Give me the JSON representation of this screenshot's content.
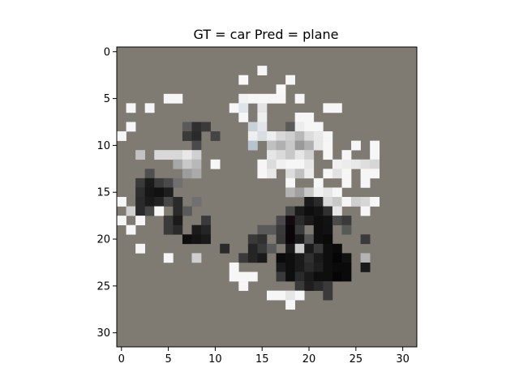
{
  "chart_data": {
    "type": "heatmap",
    "title": "GT = car Pred = plane",
    "xlabel": "",
    "ylabel": "",
    "grid": false,
    "xlim": [
      -0.5,
      31.5
    ],
    "ylim": [
      31.5,
      -0.5
    ],
    "x_ticks": [
      0,
      5,
      10,
      15,
      20,
      25,
      30
    ],
    "y_ticks": [
      0,
      5,
      10,
      15,
      20,
      25,
      30
    ],
    "background_color": "#7f7b72",
    "cells": [
      [
        15,
        2,
        "#f6f6f6"
      ],
      [
        13,
        3,
        "#f8f8f8"
      ],
      [
        18,
        3,
        "#f6f6f6"
      ],
      [
        17,
        4,
        "#f8f8f8"
      ],
      [
        5,
        5,
        "#f6f6f6"
      ],
      [
        6,
        5,
        "#f6f6f6"
      ],
      [
        13,
        5,
        "#f2f2f2"
      ],
      [
        14,
        5,
        "#f6f6f6"
      ],
      [
        15,
        5,
        "#f6f6f6"
      ],
      [
        16,
        5,
        "#f6f6f6"
      ],
      [
        17,
        5,
        "#f6f6f6"
      ],
      [
        19,
        5,
        "#f6f6f6"
      ],
      [
        1,
        6,
        "#f6f6f6"
      ],
      [
        3,
        6,
        "#f6f6f6"
      ],
      [
        12,
        6,
        "#f6f6f6"
      ],
      [
        13,
        6,
        "#dde4ea"
      ],
      [
        15,
        6,
        "#e4e4e4"
      ],
      [
        22,
        6,
        "#f6f6f6"
      ],
      [
        23,
        6,
        "#f6f6f6"
      ],
      [
        13,
        7,
        "#f6f6f6"
      ],
      [
        15,
        7,
        "#eeeeee"
      ],
      [
        19,
        7,
        "#f6f6f6"
      ],
      [
        20,
        7,
        "#f6f6f6"
      ],
      [
        1,
        8,
        "#f6f6f6"
      ],
      [
        7,
        8,
        "#5a5a5a"
      ],
      [
        8,
        8,
        "#2f2f2f"
      ],
      [
        9,
        8,
        "#3a3a3a"
      ],
      [
        14,
        8,
        "#c8d0d8"
      ],
      [
        15,
        8,
        "#e2e6ea"
      ],
      [
        18,
        8,
        "#5a5a5a"
      ],
      [
        19,
        8,
        "#ececec"
      ],
      [
        20,
        8,
        "#f6f6f6"
      ],
      [
        21,
        8,
        "#f6f6f6"
      ],
      [
        0,
        9,
        "#f6f6f6"
      ],
      [
        7,
        9,
        "#3a3a3a"
      ],
      [
        8,
        9,
        "#2a2a2a"
      ],
      [
        10,
        9,
        "#454545"
      ],
      [
        14,
        9,
        "#eeeeee"
      ],
      [
        15,
        9,
        "#d8dde2"
      ],
      [
        16,
        9,
        "#eeeeee"
      ],
      [
        17,
        9,
        "#d8d8d8"
      ],
      [
        18,
        9,
        "#cfcfcf"
      ],
      [
        19,
        9,
        "#b8b8b8"
      ],
      [
        20,
        9,
        "#dcdcdc"
      ],
      [
        21,
        9,
        "#e8e8e8"
      ],
      [
        22,
        9,
        "#f6f6f6"
      ],
      [
        8,
        10,
        "#4a4a4a"
      ],
      [
        14,
        10,
        "#b7c4d0"
      ],
      [
        16,
        10,
        "#c0c0c0"
      ],
      [
        17,
        10,
        "#b0b0b0"
      ],
      [
        18,
        10,
        "#c8c8c8"
      ],
      [
        19,
        10,
        "#9a9a9a"
      ],
      [
        20,
        10,
        "#b0b0b0"
      ],
      [
        21,
        10,
        "#e6e6e6"
      ],
      [
        22,
        10,
        "#f6f6f6"
      ],
      [
        25,
        10,
        "#f6f6f6"
      ],
      [
        27,
        10,
        "#f6f6f6"
      ],
      [
        2,
        11,
        "#c2c2c2"
      ],
      [
        4,
        11,
        "#d8d8d8"
      ],
      [
        5,
        11,
        "#d8d8d8"
      ],
      [
        6,
        11,
        "#d8d8d8"
      ],
      [
        7,
        11,
        "#e8e8e8"
      ],
      [
        8,
        11,
        "#d0d0d0"
      ],
      [
        16,
        11,
        "#e6e6e6"
      ],
      [
        17,
        11,
        "#dadada"
      ],
      [
        18,
        11,
        "#c8c8c8"
      ],
      [
        19,
        11,
        "#e6e6e6"
      ],
      [
        20,
        11,
        "#d0d0d0"
      ],
      [
        22,
        11,
        "#f6f6f6"
      ],
      [
        24,
        11,
        "#f6f6f6"
      ],
      [
        27,
        11,
        "#f6f6f6"
      ],
      [
        6,
        12,
        "#a8a8a8"
      ],
      [
        7,
        12,
        "#c8c8c8"
      ],
      [
        8,
        12,
        "#b8b8b8"
      ],
      [
        10,
        12,
        "#f6f6f6"
      ],
      [
        15,
        12,
        "#f6f6f6"
      ],
      [
        16,
        12,
        "#dcdcdc"
      ],
      [
        17,
        12,
        "#f0f0f0"
      ],
      [
        18,
        12,
        "#f6f6f6"
      ],
      [
        19,
        12,
        "#f6f6f6"
      ],
      [
        20,
        12,
        "#e6e6e6"
      ],
      [
        23,
        12,
        "#f0f0f0"
      ],
      [
        24,
        12,
        "#ececec"
      ],
      [
        25,
        12,
        "#e8e8e8"
      ],
      [
        26,
        12,
        "#dedede"
      ],
      [
        27,
        12,
        "#d6d6d6"
      ],
      [
        3,
        13,
        "#4f4f4f"
      ],
      [
        7,
        13,
        "#9c9c9c"
      ],
      [
        8,
        13,
        "#aaaaaa"
      ],
      [
        15,
        13,
        "#f6f6f6"
      ],
      [
        16,
        13,
        "#e8e8e8"
      ],
      [
        18,
        13,
        "#dcdcdc"
      ],
      [
        19,
        13,
        "#c0c0c0"
      ],
      [
        20,
        13,
        "#ececec"
      ],
      [
        22,
        13,
        "#f6f6f6"
      ],
      [
        23,
        13,
        "#e2e2e2"
      ],
      [
        24,
        13,
        "#f6f6f6"
      ],
      [
        26,
        13,
        "#f6f6f6"
      ],
      [
        27,
        13,
        "#f6f6f6"
      ],
      [
        2,
        14,
        "#3a3a3a"
      ],
      [
        3,
        14,
        "#1a1a1a"
      ],
      [
        4,
        14,
        "#3a3a3a"
      ],
      [
        5,
        14,
        "#4a4a4a"
      ],
      [
        6,
        14,
        "#707070"
      ],
      [
        18,
        14,
        "#f6f6f6"
      ],
      [
        21,
        14,
        "#f6f6f6"
      ],
      [
        24,
        14,
        "#f6f6f6"
      ],
      [
        26,
        14,
        "#f6f6f6"
      ],
      [
        2,
        15,
        "#2e2e2e"
      ],
      [
        3,
        15,
        "#161616"
      ],
      [
        4,
        15,
        "#111111"
      ],
      [
        5,
        15,
        "#1e1e1e"
      ],
      [
        18,
        15,
        "#b4b4b4"
      ],
      [
        19,
        15,
        "#a0a0a0"
      ],
      [
        20,
        15,
        "#c8c8c8"
      ],
      [
        21,
        15,
        "#f0f0f0"
      ],
      [
        22,
        15,
        "#e6e6e6"
      ],
      [
        23,
        15,
        "#f6f6f6"
      ],
      [
        2,
        16,
        "#2a2a2a"
      ],
      [
        3,
        16,
        "#1a1a1a"
      ],
      [
        4,
        16,
        "#232323"
      ],
      [
        5,
        16,
        "#474747"
      ],
      [
        6,
        16,
        "#2a2a2a"
      ],
      [
        8,
        16,
        "#707070"
      ],
      [
        20,
        16,
        "#1a1a1a"
      ],
      [
        21,
        16,
        "#2a2a2a"
      ],
      [
        22,
        16,
        "#d8d8d8"
      ],
      [
        23,
        16,
        "#c8c8c8"
      ],
      [
        24,
        16,
        "#f6f6f6"
      ],
      [
        25,
        16,
        "#cfcfcf"
      ],
      [
        26,
        16,
        "#d6d6d6"
      ],
      [
        27,
        16,
        "#f6f6f6"
      ],
      [
        0,
        16,
        "#f6f6f6"
      ],
      [
        1,
        17,
        "#d0d0d0"
      ],
      [
        2,
        17,
        "#2a2a2a"
      ],
      [
        3,
        17,
        "#474747"
      ],
      [
        4,
        17,
        "#f6f6f6"
      ],
      [
        6,
        17,
        "#2a2a2a"
      ],
      [
        7,
        17,
        "#5a5a5a"
      ],
      [
        18,
        17,
        "#4a4a4a"
      ],
      [
        19,
        17,
        "#1a1a1a"
      ],
      [
        20,
        17,
        "#0e0e0e"
      ],
      [
        21,
        17,
        "#141414"
      ],
      [
        22,
        17,
        "#303030"
      ],
      [
        23,
        17,
        "#e6e6e6"
      ],
      [
        26,
        17,
        "#f6f6f6"
      ],
      [
        0,
        18,
        "#f6f6f6"
      ],
      [
        2,
        18,
        "#f6f6f6"
      ],
      [
        5,
        18,
        "#3a3a3a"
      ],
      [
        6,
        18,
        "#1a1a1a"
      ],
      [
        9,
        18,
        "#3a3a3a"
      ],
      [
        17,
        18,
        "#4a4a4a"
      ],
      [
        18,
        18,
        "#120a0e"
      ],
      [
        19,
        18,
        "#2a2a2a"
      ],
      [
        20,
        18,
        "#1a1a1a"
      ],
      [
        21,
        18,
        "#0e0e0e"
      ],
      [
        22,
        18,
        "#121212"
      ],
      [
        23,
        18,
        "#4a4a4a"
      ],
      [
        24,
        18,
        "#3a3a3a"
      ],
      [
        1,
        19,
        "#f6f6f6"
      ],
      [
        5,
        19,
        "#3a3a3a"
      ],
      [
        6,
        19,
        "#2a2a2a"
      ],
      [
        8,
        19,
        "#1a1a1a"
      ],
      [
        9,
        19,
        "#252525"
      ],
      [
        15,
        19,
        "#5a5a5a"
      ],
      [
        16,
        19,
        "#5a5a5a"
      ],
      [
        17,
        19,
        "#3a3a3a"
      ],
      [
        18,
        19,
        "#0a0508"
      ],
      [
        19,
        19,
        "#3a3a3a"
      ],
      [
        21,
        19,
        "#0e0e0e"
      ],
      [
        22,
        19,
        "#111111"
      ],
      [
        24,
        19,
        "#555a55"
      ],
      [
        7,
        20,
        "#0e0e0e"
      ],
      [
        8,
        20,
        "#141414"
      ],
      [
        9,
        20,
        "#1a1a1a"
      ],
      [
        14,
        20,
        "#3a3a3a"
      ],
      [
        15,
        20,
        "#303030"
      ],
      [
        17,
        20,
        "#383838"
      ],
      [
        18,
        20,
        "#0a0508"
      ],
      [
        19,
        20,
        "#1a1a1a"
      ],
      [
        20,
        20,
        "#555555"
      ],
      [
        21,
        20,
        "#0e0e0e"
      ],
      [
        22,
        20,
        "#0a0a0a"
      ],
      [
        26,
        20,
        "#3a3a3a"
      ],
      [
        2,
        21,
        "#f6f6f6"
      ],
      [
        11,
        21,
        "#2a2a2a"
      ],
      [
        14,
        21,
        "#252525"
      ],
      [
        15,
        21,
        "#3a3a3a"
      ],
      [
        16,
        21,
        "#5a5a5a"
      ],
      [
        18,
        21,
        "#1a1a1a"
      ],
      [
        19,
        21,
        "#cccccc"
      ],
      [
        20,
        21,
        "#1a1a1a"
      ],
      [
        21,
        21,
        "#3a3a3a"
      ],
      [
        22,
        21,
        "#0e0e0e"
      ],
      [
        23,
        21,
        "#0a0a0a"
      ],
      [
        5,
        22,
        "#f6f6f6"
      ],
      [
        8,
        22,
        "#cfcfcf"
      ],
      [
        13,
        22,
        "#3a3a3a"
      ],
      [
        14,
        22,
        "#252525"
      ],
      [
        15,
        22,
        "#1a1a1a"
      ],
      [
        17,
        22,
        "#0a0a0a"
      ],
      [
        18,
        22,
        "#0e0e0e"
      ],
      [
        19,
        22,
        "#1a1a1a"
      ],
      [
        20,
        22,
        "#303030"
      ],
      [
        21,
        22,
        "#1a1a1a"
      ],
      [
        22,
        22,
        "#0e0e0e"
      ],
      [
        23,
        22,
        "#050505"
      ],
      [
        24,
        22,
        "#111111"
      ],
      [
        26,
        22,
        "#b4b4b4"
      ],
      [
        12,
        23,
        "#f6f6f6"
      ],
      [
        17,
        23,
        "#1a1a1a"
      ],
      [
        18,
        23,
        "#0e0e0e"
      ],
      [
        19,
        23,
        "#1a1a1a"
      ],
      [
        20,
        23,
        "#2a2a2a"
      ],
      [
        21,
        23,
        "#1e1e1e"
      ],
      [
        22,
        23,
        "#0e0e0e"
      ],
      [
        23,
        23,
        "#0a0a0a"
      ],
      [
        24,
        23,
        "#0a0a0a"
      ],
      [
        26,
        23,
        "#1a1a1a"
      ],
      [
        12,
        24,
        "#f6f6f6"
      ],
      [
        13,
        24,
        "#f6f6f6"
      ],
      [
        14,
        24,
        "#f6f6f6"
      ],
      [
        17,
        24,
        "#3a3a3a"
      ],
      [
        18,
        24,
        "#0e0e0e"
      ],
      [
        19,
        24,
        "#2a2a2a"
      ],
      [
        20,
        24,
        "#1a1a1a"
      ],
      [
        21,
        24,
        "#0e0e0e"
      ],
      [
        22,
        24,
        "#0e0e0e"
      ],
      [
        23,
        24,
        "#050505"
      ],
      [
        24,
        24,
        "#0a0a0a"
      ],
      [
        13,
        25,
        "#f6f6f6"
      ],
      [
        19,
        25,
        "#3a3a3a"
      ],
      [
        20,
        25,
        "#1e1e1e"
      ],
      [
        21,
        25,
        "#2a2a2a"
      ],
      [
        22,
        25,
        "#3a3a3a"
      ],
      [
        16,
        26,
        "#f6f6f6"
      ],
      [
        17,
        26,
        "#f6f6f6"
      ],
      [
        18,
        26,
        "#e6e6e6"
      ],
      [
        19,
        26,
        "#f6f6f6"
      ],
      [
        22,
        26,
        "#3a3a3a"
      ],
      [
        18,
        27,
        "#f6f6f6"
      ]
    ]
  }
}
